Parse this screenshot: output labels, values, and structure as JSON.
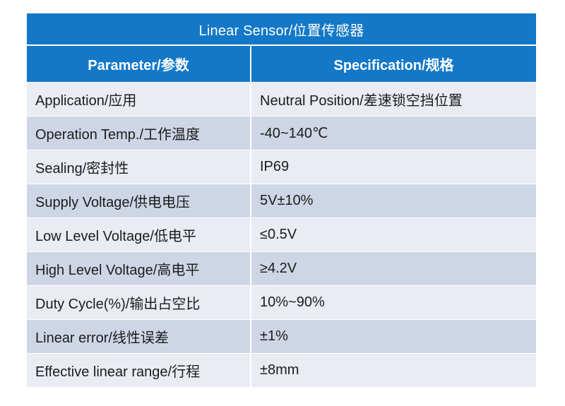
{
  "table": {
    "title": "Linear Sensor/位置传感器",
    "headers": {
      "parameter": "Parameter/参数",
      "specification": "Specification/规格"
    },
    "rows": [
      {
        "parameter": "Application/应用",
        "value": "Neutral Position/差速锁空挡位置"
      },
      {
        "parameter": "Operation Temp./工作温度",
        "value": "-40~140℃"
      },
      {
        "parameter": "Sealing/密封性",
        "value": "IP69"
      },
      {
        "parameter": "Supply Voltage/供电电压",
        "value": "5V±10%"
      },
      {
        "parameter": "Low Level Voltage/低电平",
        "value": "≤0.5V"
      },
      {
        "parameter": "High Level Voltage/高电平",
        "value": "≥4.2V"
      },
      {
        "parameter": "Duty Cycle(%)/输出占空比",
        "value": "10%~90%"
      },
      {
        "parameter": "Linear error/线性误差",
        "value": "±1%"
      },
      {
        "parameter": "Effective linear range/行程",
        "value": "±8mm"
      }
    ]
  },
  "colors": {
    "header_blue": "#1478c8",
    "row_light": "#e9ecf3",
    "row_dark": "#ced6e6"
  }
}
